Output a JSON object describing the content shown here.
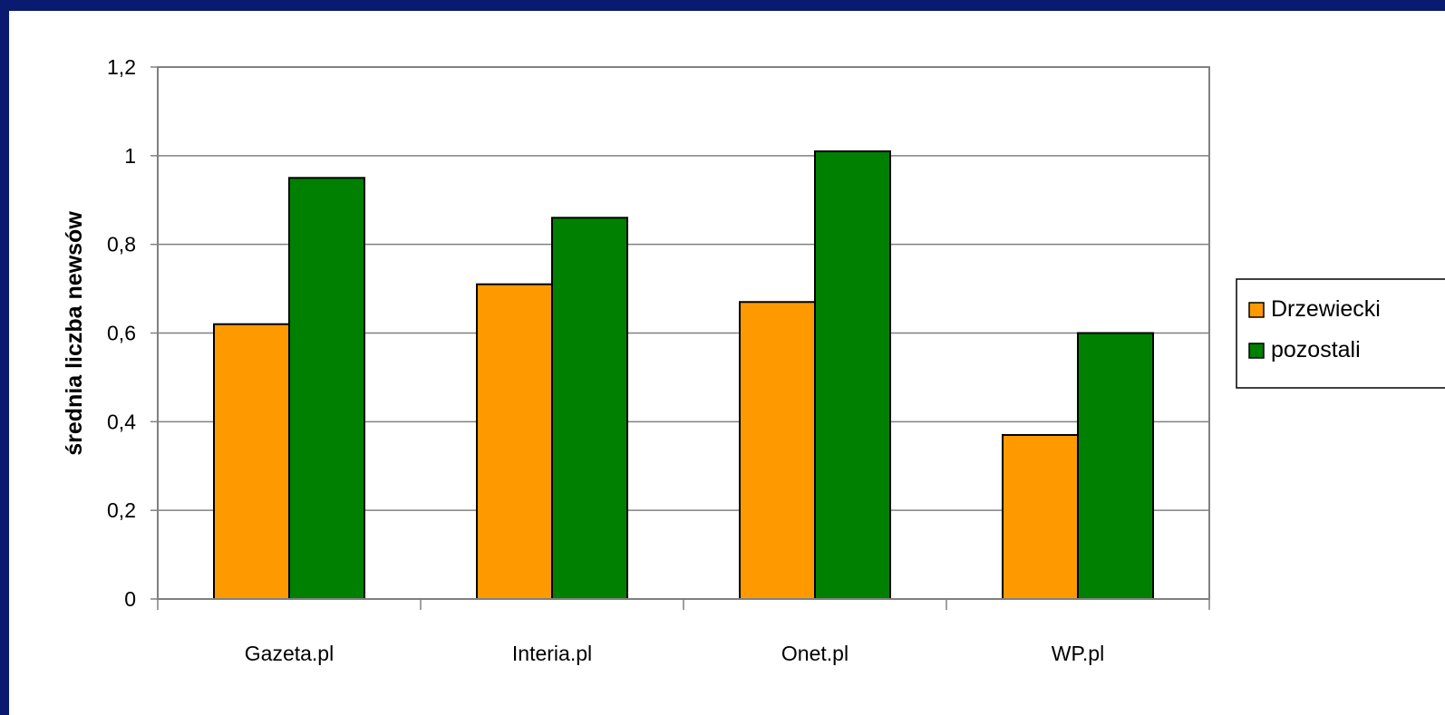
{
  "chart_data": {
    "type": "bar",
    "categories": [
      "Gazeta.pl",
      "Interia.pl",
      "Onet.pl",
      "WP.pl"
    ],
    "series": [
      {
        "name": "Drzewiecki",
        "color": "#ff9900",
        "values": [
          0.62,
          0.71,
          0.67,
          0.37
        ]
      },
      {
        "name": "pozostali",
        "color": "#008000",
        "values": [
          0.95,
          0.86,
          1.01,
          0.6
        ]
      }
    ],
    "ylabel": "średnia liczba newsów",
    "ylim": [
      0,
      1.2
    ],
    "yticks": [
      0,
      0.2,
      0.4,
      0.6,
      0.8,
      1,
      1.2
    ],
    "ytick_labels": [
      "0",
      "0,2",
      "0,4",
      "0,6",
      "0,8",
      "1",
      "1,2"
    ],
    "grid": true,
    "legend_position": "right"
  }
}
